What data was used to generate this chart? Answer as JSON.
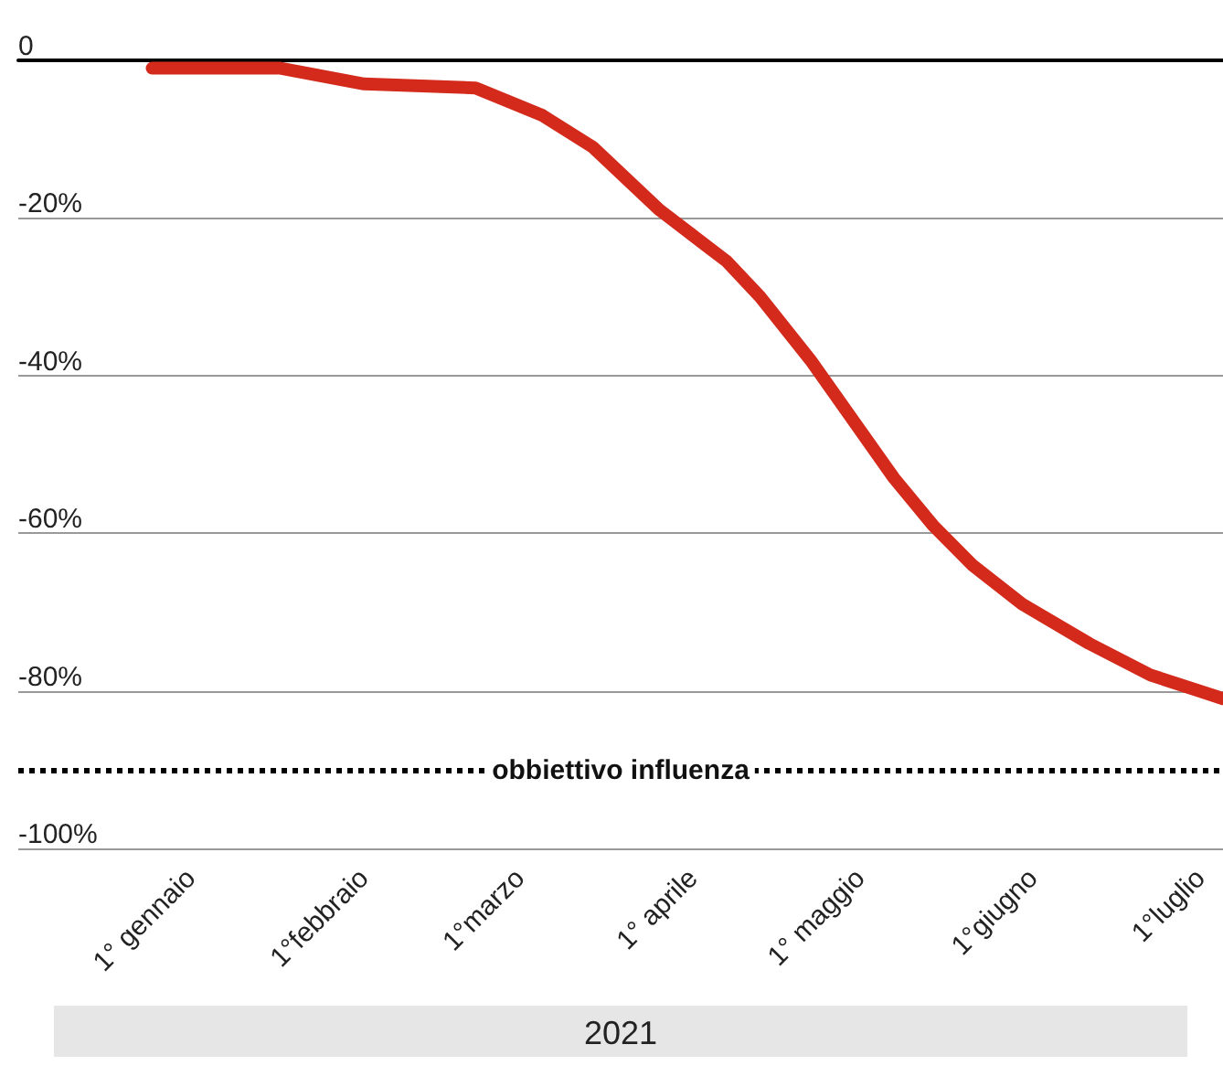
{
  "chart_data": {
    "type": "line",
    "xlabel": "2021",
    "x": [
      "2020-12-25",
      "2021-01-17",
      "2021-02-01",
      "2021-02-21",
      "2021-03-05",
      "2021-03-14",
      "2021-03-26",
      "2021-04-07",
      "2021-04-13",
      "2021-04-22",
      "2021-04-30",
      "2021-05-07",
      "2021-05-14",
      "2021-05-21",
      "2021-05-30",
      "2021-06-11",
      "2021-06-22",
      "2021-07-05"
    ],
    "series": [
      {
        "color": "#d42a1c",
        "values": [
          -1,
          -1,
          -3,
          -3.5,
          -7,
          -11,
          -19,
          -25.5,
          -30,
          -38,
          -46,
          -53,
          -59,
          -64,
          -69,
          -74,
          -78,
          -81
        ]
      }
    ],
    "xlim": [
      "2020-12-01",
      "2021-07-05"
    ],
    "xticks": [
      {
        "value": "2021-01-01",
        "label": "1° gennaio"
      },
      {
        "value": "2021-02-01",
        "label": "1°febbraio"
      },
      {
        "value": "2021-03-01",
        "label": "1°marzo"
      },
      {
        "value": "2021-04-01",
        "label": "1° aprile"
      },
      {
        "value": "2021-05-01",
        "label": "1° maggio"
      },
      {
        "value": "2021-06-01",
        "label": "1°giugno"
      },
      {
        "value": "2021-07-01",
        "label": "1°luglio"
      }
    ],
    "ylim": [
      -100,
      0
    ],
    "yticks": [
      {
        "value": -100,
        "label": "-100%"
      },
      {
        "value": -80,
        "label": "-80%"
      },
      {
        "value": -60,
        "label": "-60%"
      },
      {
        "value": -40,
        "label": "-40%"
      },
      {
        "value": -20,
        "label": "-20%"
      },
      {
        "value": 0,
        "label": "0"
      }
    ],
    "grid": "y",
    "line_style": "solid",
    "ref_lines": [
      {
        "axis": "y",
        "value": -90,
        "label": "obbiettivo influenza",
        "color": "#000000",
        "line_style": "dotted"
      }
    ]
  }
}
